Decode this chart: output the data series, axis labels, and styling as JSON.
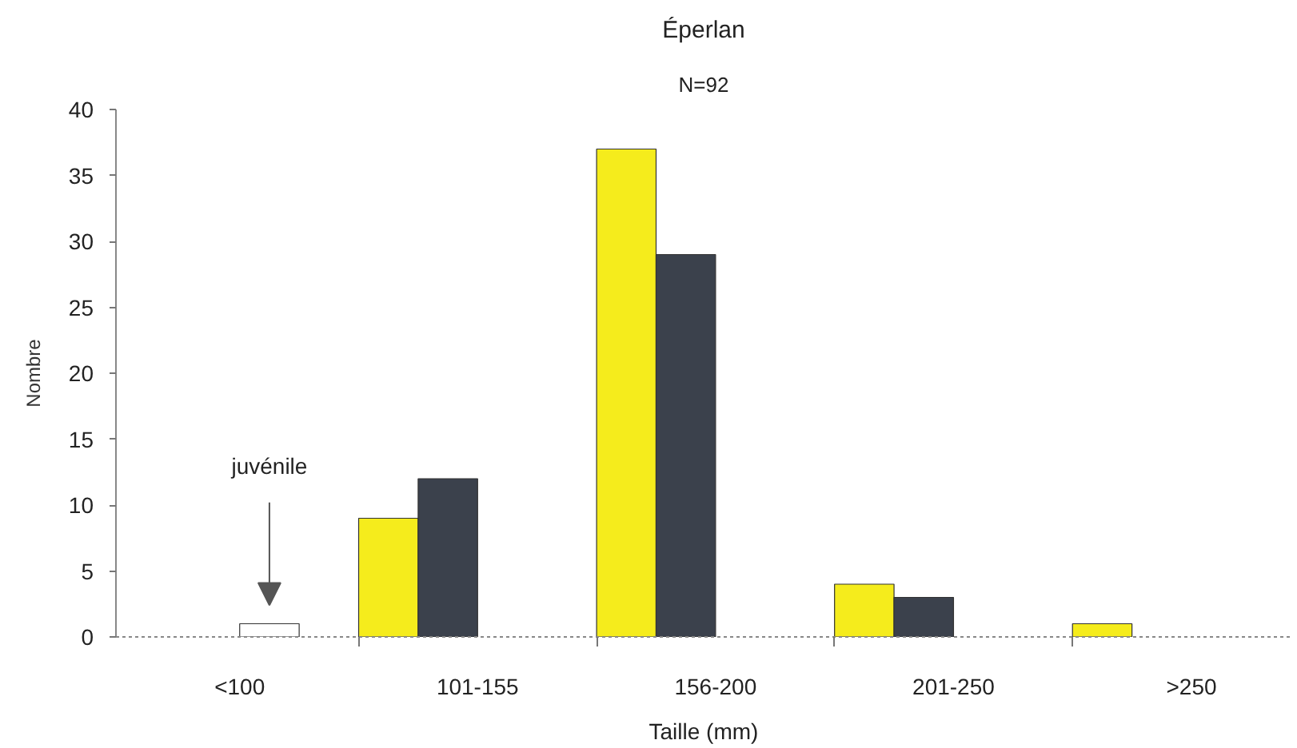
{
  "chart_data": {
    "type": "bar",
    "title": "Éperlan",
    "subtitle": "N=92",
    "xlabel": "Taille (mm)",
    "ylabel": "Nombre",
    "categories": [
      "<100",
      "101-155",
      "156-200",
      "201-250",
      ">250"
    ],
    "series": [
      {
        "color": "#f5ec1c",
        "values": [
          null,
          9,
          37,
          4,
          1
        ]
      },
      {
        "color": "#3b414c",
        "values": [
          null,
          12,
          29,
          3,
          null
        ]
      },
      {
        "color": "#ffffff",
        "values": [
          1,
          null,
          null,
          null,
          null
        ]
      }
    ],
    "ylim": [
      0,
      40
    ],
    "yticks": [
      0,
      5,
      10,
      15,
      20,
      25,
      30,
      35,
      40
    ],
    "grid": false,
    "annotations": [
      "juvénile"
    ]
  }
}
